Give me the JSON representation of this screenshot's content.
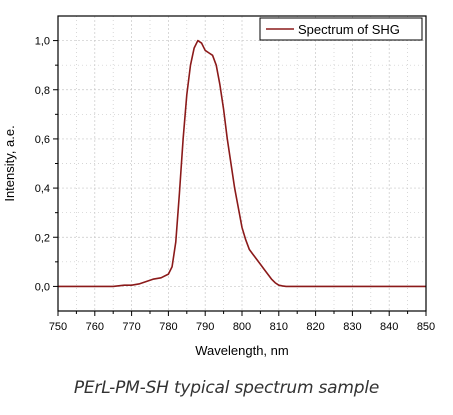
{
  "chart_data": {
    "type": "line",
    "title": "",
    "xlabel": "Wavelength, nm",
    "ylabel": "Intensity, a.e.",
    "xlim": [
      750,
      850
    ],
    "ylim": [
      -0.1,
      1.1
    ],
    "x_ticks": [
      750,
      760,
      770,
      780,
      790,
      800,
      810,
      820,
      830,
      840,
      850
    ],
    "y_ticks": [
      0.0,
      0.2,
      0.4,
      0.6,
      0.8,
      1.0
    ],
    "y_tick_labels": [
      "0,0",
      "0,2",
      "0,4",
      "0,6",
      "0,8",
      "1,0"
    ],
    "grid": true,
    "legend_position": "top-right",
    "series": [
      {
        "name": "Spectrum of SHG",
        "color": "#8b1a1a",
        "x": [
          750,
          755,
          760,
          765,
          768,
          770,
          772,
          774,
          776,
          778,
          780,
          781,
          782,
          783,
          784,
          785,
          786,
          787,
          788,
          789,
          790,
          791,
          792,
          793,
          794,
          795,
          796,
          797,
          798,
          799,
          800,
          801,
          802,
          803,
          804,
          805,
          806,
          807,
          808,
          809,
          810,
          811,
          812,
          815,
          820,
          830,
          840,
          850
        ],
        "y": [
          0.0,
          0.0,
          0.0,
          0.0,
          0.005,
          0.005,
          0.01,
          0.02,
          0.03,
          0.035,
          0.05,
          0.08,
          0.18,
          0.38,
          0.6,
          0.78,
          0.9,
          0.97,
          1.0,
          0.99,
          0.96,
          0.95,
          0.94,
          0.9,
          0.82,
          0.72,
          0.6,
          0.5,
          0.4,
          0.32,
          0.24,
          0.19,
          0.15,
          0.13,
          0.11,
          0.09,
          0.07,
          0.05,
          0.03,
          0.015,
          0.005,
          0.002,
          0.0,
          0.0,
          0.0,
          0.0,
          0.0,
          0.0
        ]
      }
    ]
  },
  "caption": "PErL-PM-SH typical spectrum sample"
}
